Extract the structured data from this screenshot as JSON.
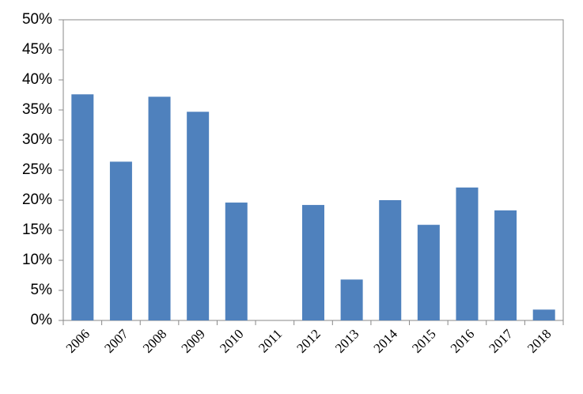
{
  "chart_data": {
    "type": "bar",
    "categories": [
      "2006",
      "2007",
      "2008",
      "2009",
      "2010",
      "2011",
      "2012",
      "2013",
      "2014",
      "2015",
      "2016",
      "2017",
      "2018"
    ],
    "values": [
      37.6,
      26.4,
      37.2,
      34.7,
      19.6,
      0,
      19.2,
      6.8,
      20.0,
      15.9,
      22.1,
      18.3,
      1.8
    ],
    "color": "#4f81bd",
    "ylim": [
      0,
      50
    ],
    "yticks": [
      {
        "value": 0,
        "label": "0%"
      },
      {
        "value": 5,
        "label": "5%"
      },
      {
        "value": 10,
        "label": "10%"
      },
      {
        "value": 15,
        "label": "15%"
      },
      {
        "value": 20,
        "label": "20%"
      },
      {
        "value": 25,
        "label": "25%"
      },
      {
        "value": 30,
        "label": "30%"
      },
      {
        "value": 35,
        "label": "35%"
      },
      {
        "value": 40,
        "label": "40%"
      },
      {
        "value": 45,
        "label": "45%"
      },
      {
        "value": 50,
        "label": "50%"
      }
    ],
    "grid": false
  }
}
